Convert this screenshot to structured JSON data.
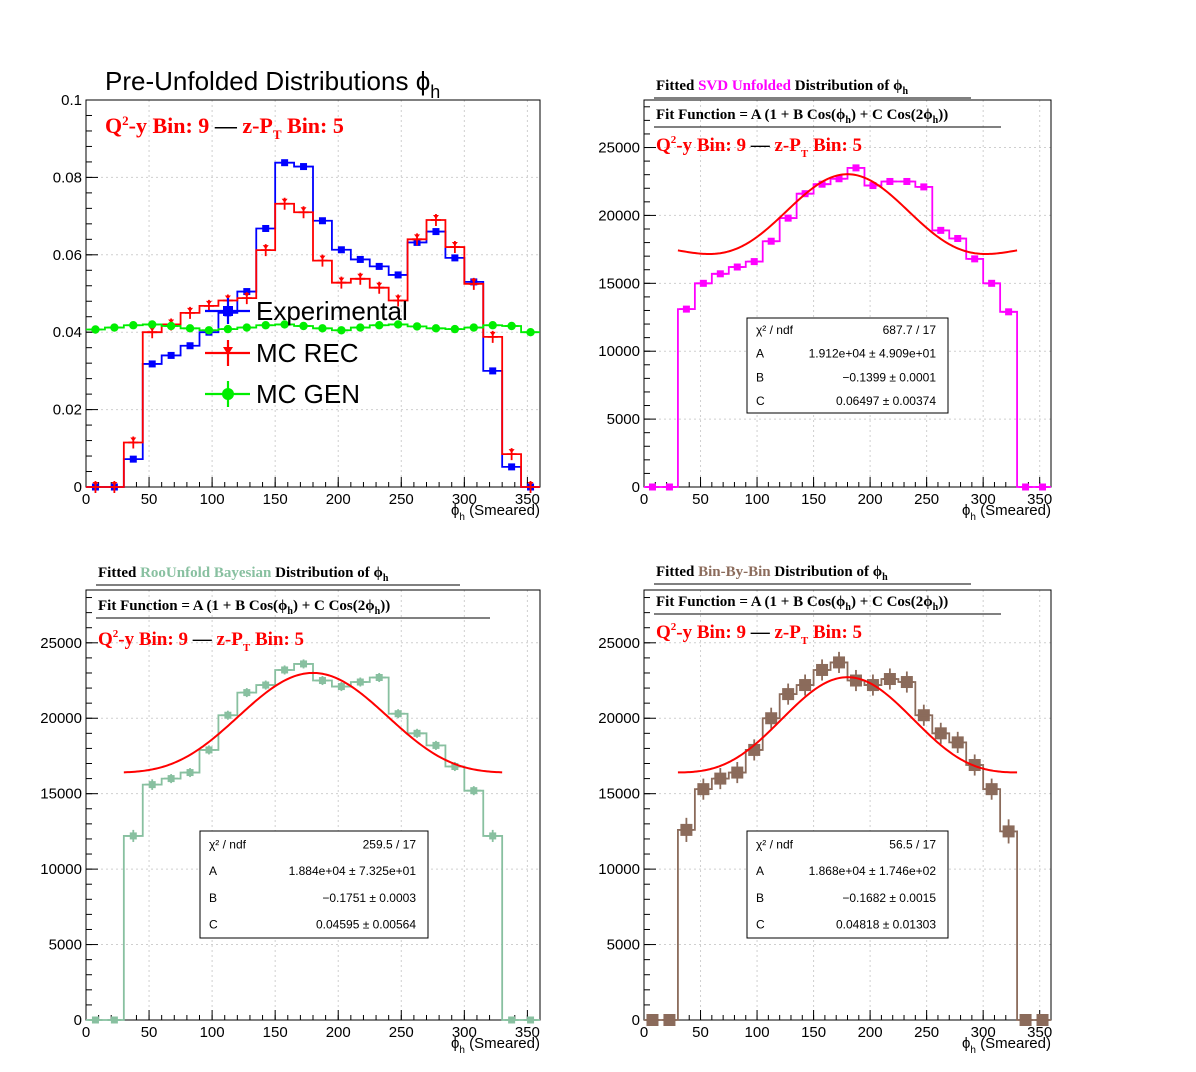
{
  "chart_data": [
    {
      "type": "line",
      "title": "Pre-Unfolded Distributions",
      "title_symbol": "ϕ",
      "title_sub": "h",
      "bin_label": {
        "q2y_pre": "Q",
        "q2y_sup": "2",
        "q2y_post": "-y Bin: 9",
        "dash": "—",
        "zpt_pre": "z-P",
        "zpt_sub": "T",
        "zpt_post": "Bin: 5"
      },
      "xlabel": {
        "symbol": "ϕ",
        "sub": "h",
        "text": "(Smeared)"
      },
      "xlim": [
        0,
        360
      ],
      "ylim": [
        0,
        0.1
      ],
      "xticks": [
        "0",
        "50",
        "100",
        "150",
        "200",
        "250",
        "300",
        "350"
      ],
      "yticks": [
        "0",
        "0.02",
        "0.04",
        "0.06",
        "0.08",
        "0.1"
      ],
      "x_centers": [
        7.5,
        22.5,
        37.5,
        52.5,
        67.5,
        82.5,
        97.5,
        112.5,
        127.5,
        142.5,
        157.5,
        172.5,
        187.5,
        202.5,
        217.5,
        232.5,
        247.5,
        262.5,
        277.5,
        292.5,
        307.5,
        322.5,
        337.5,
        352.5
      ],
      "legend": {
        "items": [
          "Experimental",
          "MC REC",
          "MC GEN"
        ]
      },
      "grid": true,
      "series": [
        {
          "name": "Experimental",
          "color": "#0000ff",
          "marker": "square",
          "values": [
            0,
            0,
            0.0072,
            0.0318,
            0.034,
            0.0365,
            0.04,
            0.045,
            0.0505,
            0.0668,
            0.0838,
            0.0828,
            0.0688,
            0.0613,
            0.0588,
            0.057,
            0.0548,
            0.0632,
            0.066,
            0.0592,
            0.053,
            0.03,
            0.0052,
            0
          ]
        },
        {
          "name": "MC REC",
          "color": "#ff0000",
          "marker": "cross",
          "values": [
            0,
            0,
            0.0115,
            0.04,
            0.042,
            0.045,
            0.0468,
            0.0482,
            0.0488,
            0.0612,
            0.0732,
            0.071,
            0.0585,
            0.0528,
            0.0538,
            0.0515,
            0.0482,
            0.064,
            0.069,
            0.062,
            0.0525,
            0.0388,
            0.0085,
            0
          ]
        },
        {
          "name": "MC GEN",
          "color": "#00ee00",
          "marker": "circle",
          "values": [
            0.0407,
            0.0412,
            0.0418,
            0.042,
            0.0416,
            0.041,
            0.0405,
            0.0408,
            0.0412,
            0.0418,
            0.042,
            0.0416,
            0.041,
            0.0405,
            0.0412,
            0.0418,
            0.042,
            0.0415,
            0.041,
            0.0408,
            0.0412,
            0.0418,
            0.0416,
            0.04
          ]
        }
      ]
    },
    {
      "type": "line",
      "title_parts": [
        "Fitted ",
        "SVD Unfolded",
        " Distribution of "
      ],
      "title_symbol": "ϕ",
      "title_sub": "h",
      "title_accent": "#ff00ff",
      "fit_function": {
        "pre": "Fit Function = A (1 + B Cos(",
        "phi": "ϕ",
        "sub": "h",
        "mid": ") + C Cos(2",
        "post": "))"
      },
      "bin_label": {
        "q2y_pre": "Q",
        "q2y_sup": "2",
        "q2y_post": "-y Bin: 9",
        "dash": "—",
        "zpt_pre": "z-P",
        "zpt_sub": "T",
        "zpt_post": "Bin: 5"
      },
      "xlabel": {
        "symbol": "ϕ",
        "sub": "h",
        "text": "(Smeared)"
      },
      "xlim": [
        0,
        360
      ],
      "ylim": [
        0,
        28500
      ],
      "xticks": [
        "0",
        "50",
        "100",
        "150",
        "200",
        "250",
        "300",
        "350"
      ],
      "yticks": [
        "0",
        "5000",
        "10000",
        "15000",
        "20000",
        "25000"
      ],
      "x_centers": [
        7.5,
        22.5,
        37.5,
        52.5,
        67.5,
        82.5,
        97.5,
        112.5,
        127.5,
        142.5,
        157.5,
        172.5,
        187.5,
        202.5,
        217.5,
        232.5,
        247.5,
        262.5,
        277.5,
        292.5,
        307.5,
        322.5,
        337.5,
        352.5
      ],
      "series": [
        {
          "name": "SVD Unfolded",
          "color": "#ff00ff",
          "marker": "square",
          "err": [
            0,
            0,
            150,
            150,
            150,
            150,
            150,
            150,
            150,
            150,
            150,
            150,
            150,
            150,
            150,
            150,
            150,
            150,
            150,
            150,
            150,
            150,
            0,
            0
          ],
          "values": [
            0,
            0,
            13100,
            15000,
            15700,
            16200,
            16600,
            18100,
            19800,
            21600,
            22300,
            22700,
            23500,
            22200,
            22500,
            22500,
            22100,
            18900,
            18300,
            16800,
            15000,
            12900,
            0,
            0
          ]
        }
      ],
      "fit": {
        "color": "#ff0000",
        "A": 19120,
        "B": -0.1399,
        "C": 0.06497,
        "range": [
          30,
          330
        ]
      },
      "stats": [
        {
          "label": "χ² / ndf",
          "value": "687.7 / 17"
        },
        {
          "label": "A",
          "value": "1.912e+04  ± 4.909e+01"
        },
        {
          "label": "B",
          "value": "−0.1399  ± 0.0001"
        },
        {
          "label": "C",
          "value": "0.06497  ± 0.00374"
        }
      ],
      "grid": true
    },
    {
      "type": "line",
      "title_parts": [
        "Fitted ",
        "RooUnfold Bayesian",
        " Distribution of "
      ],
      "title_symbol": "ϕ",
      "title_sub": "h",
      "title_accent": "#88c0a0",
      "fit_function": {
        "pre": "Fit Function = A (1 + B Cos(",
        "phi": "ϕ",
        "sub": "h",
        "mid": ") + C Cos(2",
        "post": "))"
      },
      "bin_label": {
        "q2y_pre": "Q",
        "q2y_sup": "2",
        "q2y_post": "-y Bin: 9",
        "dash": "—",
        "zpt_pre": "z-P",
        "zpt_sub": "T",
        "zpt_post": "Bin: 5"
      },
      "xlabel": {
        "symbol": "ϕ",
        "sub": "h",
        "text": "(Smeared)"
      },
      "xlim": [
        0,
        360
      ],
      "ylim": [
        0,
        28500
      ],
      "xticks": [
        "0",
        "50",
        "100",
        "150",
        "200",
        "250",
        "300",
        "350"
      ],
      "yticks": [
        "0",
        "5000",
        "10000",
        "15000",
        "20000",
        "25000"
      ],
      "x_centers": [
        7.5,
        22.5,
        37.5,
        52.5,
        67.5,
        82.5,
        97.5,
        112.5,
        127.5,
        142.5,
        157.5,
        172.5,
        187.5,
        202.5,
        217.5,
        232.5,
        247.5,
        262.5,
        277.5,
        292.5,
        307.5,
        322.5,
        337.5,
        352.5
      ],
      "series": [
        {
          "name": "RooUnfold Bayesian",
          "color": "#88c0a0",
          "marker": "square",
          "err": [
            0,
            0,
            400,
            350,
            300,
            300,
            300,
            300,
            300,
            300,
            300,
            300,
            300,
            300,
            300,
            300,
            300,
            300,
            300,
            300,
            300,
            400,
            0,
            0
          ],
          "values": [
            0,
            0,
            12200,
            15600,
            16000,
            16400,
            17900,
            20200,
            21700,
            22200,
            23200,
            23600,
            22500,
            22100,
            22400,
            22700,
            20300,
            19000,
            18200,
            16800,
            15200,
            12200,
            0,
            0
          ]
        }
      ],
      "fit": {
        "color": "#ff0000",
        "A": 18840,
        "B": -0.1751,
        "C": 0.04595,
        "range": [
          30,
          330
        ]
      },
      "stats": [
        {
          "label": "χ² / ndf",
          "value": "259.5 / 17"
        },
        {
          "label": "A",
          "value": "1.884e+04 ± 7.325e+01"
        },
        {
          "label": "B",
          "value": "−0.1751 ± 0.0003"
        },
        {
          "label": "C",
          "value": "0.04595 ± 0.00564"
        }
      ],
      "grid": true
    },
    {
      "type": "line",
      "title_parts": [
        "Fitted ",
        "Bin-By-Bin",
        " Distribution of "
      ],
      "title_symbol": "ϕ",
      "title_sub": "h",
      "title_accent": "#8b6b5b",
      "fit_function": {
        "pre": "Fit Function = A (1 + B Cos(",
        "phi": "ϕ",
        "sub": "h",
        "mid": ") + C Cos(2",
        "post": "))"
      },
      "bin_label": {
        "q2y_pre": "Q",
        "q2y_sup": "2",
        "q2y_post": "-y Bin: 9",
        "dash": "—",
        "zpt_pre": "z-P",
        "zpt_sub": "T",
        "zpt_post": "Bin: 5"
      },
      "xlabel": {
        "symbol": "ϕ",
        "sub": "h",
        "text": "(Smeared)"
      },
      "xlim": [
        0,
        360
      ],
      "ylim": [
        0,
        28500
      ],
      "xticks": [
        "0",
        "50",
        "100",
        "150",
        "200",
        "250",
        "300",
        "350"
      ],
      "yticks": [
        "0",
        "5000",
        "10000",
        "15000",
        "20000",
        "25000"
      ],
      "x_centers": [
        7.5,
        22.5,
        37.5,
        52.5,
        67.5,
        82.5,
        97.5,
        112.5,
        127.5,
        142.5,
        157.5,
        172.5,
        187.5,
        202.5,
        217.5,
        232.5,
        247.5,
        262.5,
        277.5,
        292.5,
        307.5,
        322.5,
        337.5,
        352.5
      ],
      "series": [
        {
          "name": "Bin-By-Bin",
          "color": "#8b6b5b",
          "marker": "square",
          "err": [
            0,
            0,
            800,
            700,
            700,
            700,
            700,
            700,
            700,
            700,
            700,
            700,
            700,
            700,
            700,
            700,
            700,
            700,
            700,
            700,
            700,
            800,
            0,
            0
          ],
          "values": [
            0,
            0,
            12600,
            15300,
            16000,
            16400,
            17900,
            20000,
            21600,
            22200,
            23200,
            23700,
            22500,
            22200,
            22600,
            22400,
            20200,
            19000,
            18400,
            16900,
            15300,
            12500,
            0,
            0
          ]
        }
      ],
      "fit": {
        "color": "#ff0000",
        "A": 18680,
        "B": -0.1682,
        "C": 0.04818,
        "range": [
          30,
          330
        ]
      },
      "stats": [
        {
          "label": "χ² / ndf",
          "value": "56.5 / 17"
        },
        {
          "label": "A",
          "value": "1.868e+04 ± 1.746e+02"
        },
        {
          "label": "B",
          "value": "−0.1682 ± 0.0015"
        },
        {
          "label": "C",
          "value": "0.04818 ± 0.01303"
        }
      ],
      "grid": true
    }
  ]
}
